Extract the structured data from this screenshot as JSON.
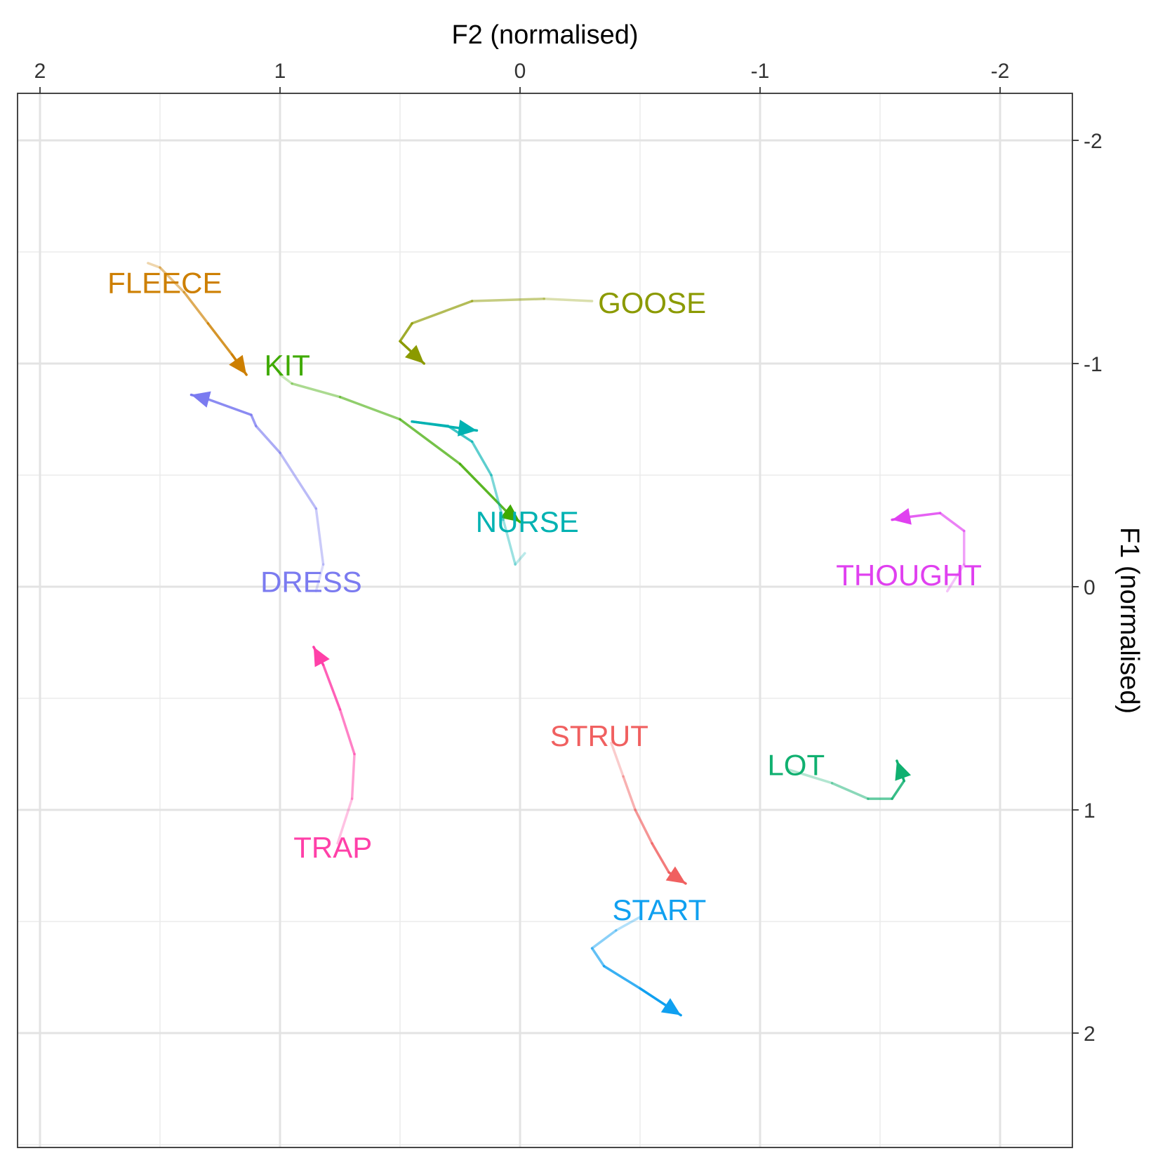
{
  "chart_data": {
    "type": "line",
    "title": "",
    "xlabel": "F2 (normalised)",
    "ylabel": "F1 (normalised)",
    "x_axis_position": "top",
    "y_axis_position": "right",
    "x_reversed": true,
    "y_reversed": true,
    "xlim": [
      2.2,
      -2.2
    ],
    "ylim": [
      -2.2,
      2.5
    ],
    "x_ticks": [
      2,
      1,
      0,
      -1,
      -2
    ],
    "x_tick_labels": [
      "2",
      "1",
      "0",
      "-1",
      "-2"
    ],
    "y_ticks": [
      -2,
      -1,
      0,
      1,
      2
    ],
    "y_tick_labels": [
      "-2",
      "-1",
      "0",
      "1",
      "2"
    ],
    "grid": true,
    "legend": "none",
    "series": [
      {
        "name": "FLEECE",
        "color": "#CD7F00",
        "label_at": [
          1.48,
          -1.36
        ],
        "x": [
          1.55,
          1.5,
          1.4,
          1.3,
          1.2,
          1.14
        ],
        "y": [
          -1.45,
          -1.43,
          -1.32,
          -1.18,
          -1.04,
          -0.95
        ]
      },
      {
        "name": "GOOSE",
        "color": "#8B9A00",
        "label_at": [
          -0.55,
          -1.27
        ],
        "x": [
          -0.3,
          -0.1,
          0.2,
          0.45,
          0.5,
          0.4
        ],
        "y": [
          -1.28,
          -1.29,
          -1.28,
          -1.18,
          -1.1,
          -1.0
        ]
      },
      {
        "name": "KIT",
        "color": "#3FAA00",
        "label_at": [
          0.97,
          -0.99
        ],
        "x": [
          1.0,
          0.95,
          0.75,
          0.5,
          0.25,
          0.05,
          0.0
        ],
        "y": [
          -0.95,
          -0.91,
          -0.85,
          -0.75,
          -0.55,
          -0.33,
          -0.29
        ]
      },
      {
        "name": "NURSE",
        "color": "#00B2B2",
        "label_at": [
          -0.03,
          -0.29
        ],
        "x": [
          -0.02,
          0.02,
          0.07,
          0.12,
          0.2,
          0.3,
          0.45,
          0.18
        ],
        "y": [
          -0.15,
          -0.1,
          -0.3,
          -0.5,
          -0.65,
          -0.72,
          -0.74,
          -0.7
        ]
      },
      {
        "name": "DRESS",
        "color": "#7B7BF0",
        "label_at": [
          0.87,
          -0.02
        ],
        "x": [
          0.85,
          0.82,
          0.85,
          1.0,
          1.1,
          1.12,
          1.3,
          1.37
        ],
        "y": [
          0.02,
          -0.1,
          -0.35,
          -0.6,
          -0.72,
          -0.77,
          -0.84,
          -0.86
        ]
      },
      {
        "name": "THOUGHT",
        "color": "#E040F0",
        "label_at": [
          -1.62,
          -0.05
        ],
        "x": [
          -1.78,
          -1.85,
          -1.85,
          -1.75,
          -1.6,
          -1.55
        ],
        "y": [
          0.02,
          -0.1,
          -0.25,
          -0.33,
          -0.31,
          -0.3
        ]
      },
      {
        "name": "TRAP",
        "color": "#FF40A8",
        "label_at": [
          0.78,
          1.17
        ],
        "x": [
          0.76,
          0.7,
          0.69,
          0.75,
          0.82,
          0.86
        ],
        "y": [
          1.15,
          0.95,
          0.75,
          0.55,
          0.35,
          0.27
        ]
      },
      {
        "name": "STRUT",
        "color": "#F06060",
        "label_at": [
          -0.33,
          0.67
        ],
        "x": [
          -0.38,
          -0.43,
          -0.48,
          -0.55,
          -0.62,
          -0.69
        ],
        "y": [
          0.7,
          0.85,
          1.0,
          1.15,
          1.28,
          1.33
        ]
      },
      {
        "name": "LOT",
        "color": "#10B070",
        "label_at": [
          -1.15,
          0.8
        ],
        "x": [
          -1.12,
          -1.3,
          -1.45,
          -1.55,
          -1.6,
          -1.57
        ],
        "y": [
          0.82,
          0.88,
          0.95,
          0.95,
          0.87,
          0.78
        ]
      },
      {
        "name": "START",
        "color": "#10A0F0",
        "label_at": [
          -0.58,
          1.45
        ],
        "x": [
          -0.5,
          -0.4,
          -0.3,
          -0.35,
          -0.5,
          -0.67
        ],
        "y": [
          1.48,
          1.54,
          1.62,
          1.7,
          1.8,
          1.92
        ]
      }
    ]
  }
}
